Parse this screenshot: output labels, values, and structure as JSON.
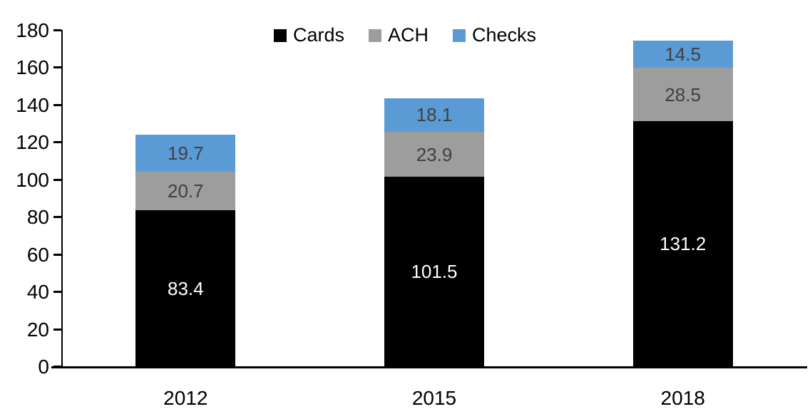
{
  "chart_data": {
    "type": "bar",
    "stacked": true,
    "title": "",
    "xlabel": "",
    "ylabel": "",
    "categories": [
      "2012",
      "2015",
      "2018"
    ],
    "series": [
      {
        "name": "Cards",
        "color": "#000000",
        "label_color": "#ffffff",
        "values": [
          83.4,
          101.5,
          131.2
        ]
      },
      {
        "name": "ACH",
        "color": "#9d9d9d",
        "label_color": "#404040",
        "values": [
          20.7,
          23.9,
          28.5
        ]
      },
      {
        "name": "Checks",
        "color": "#5b9bd5",
        "label_color": "#404040",
        "values": [
          19.7,
          18.1,
          14.5
        ]
      }
    ],
    "ylim": [
      0,
      180
    ],
    "y_ticks": [
      0,
      20,
      40,
      60,
      80,
      100,
      120,
      140,
      160,
      180
    ],
    "grid": false,
    "legend_position": "top-center",
    "data_labels": true
  },
  "colors": {
    "axis": "#000000",
    "background": "#ffffff"
  }
}
